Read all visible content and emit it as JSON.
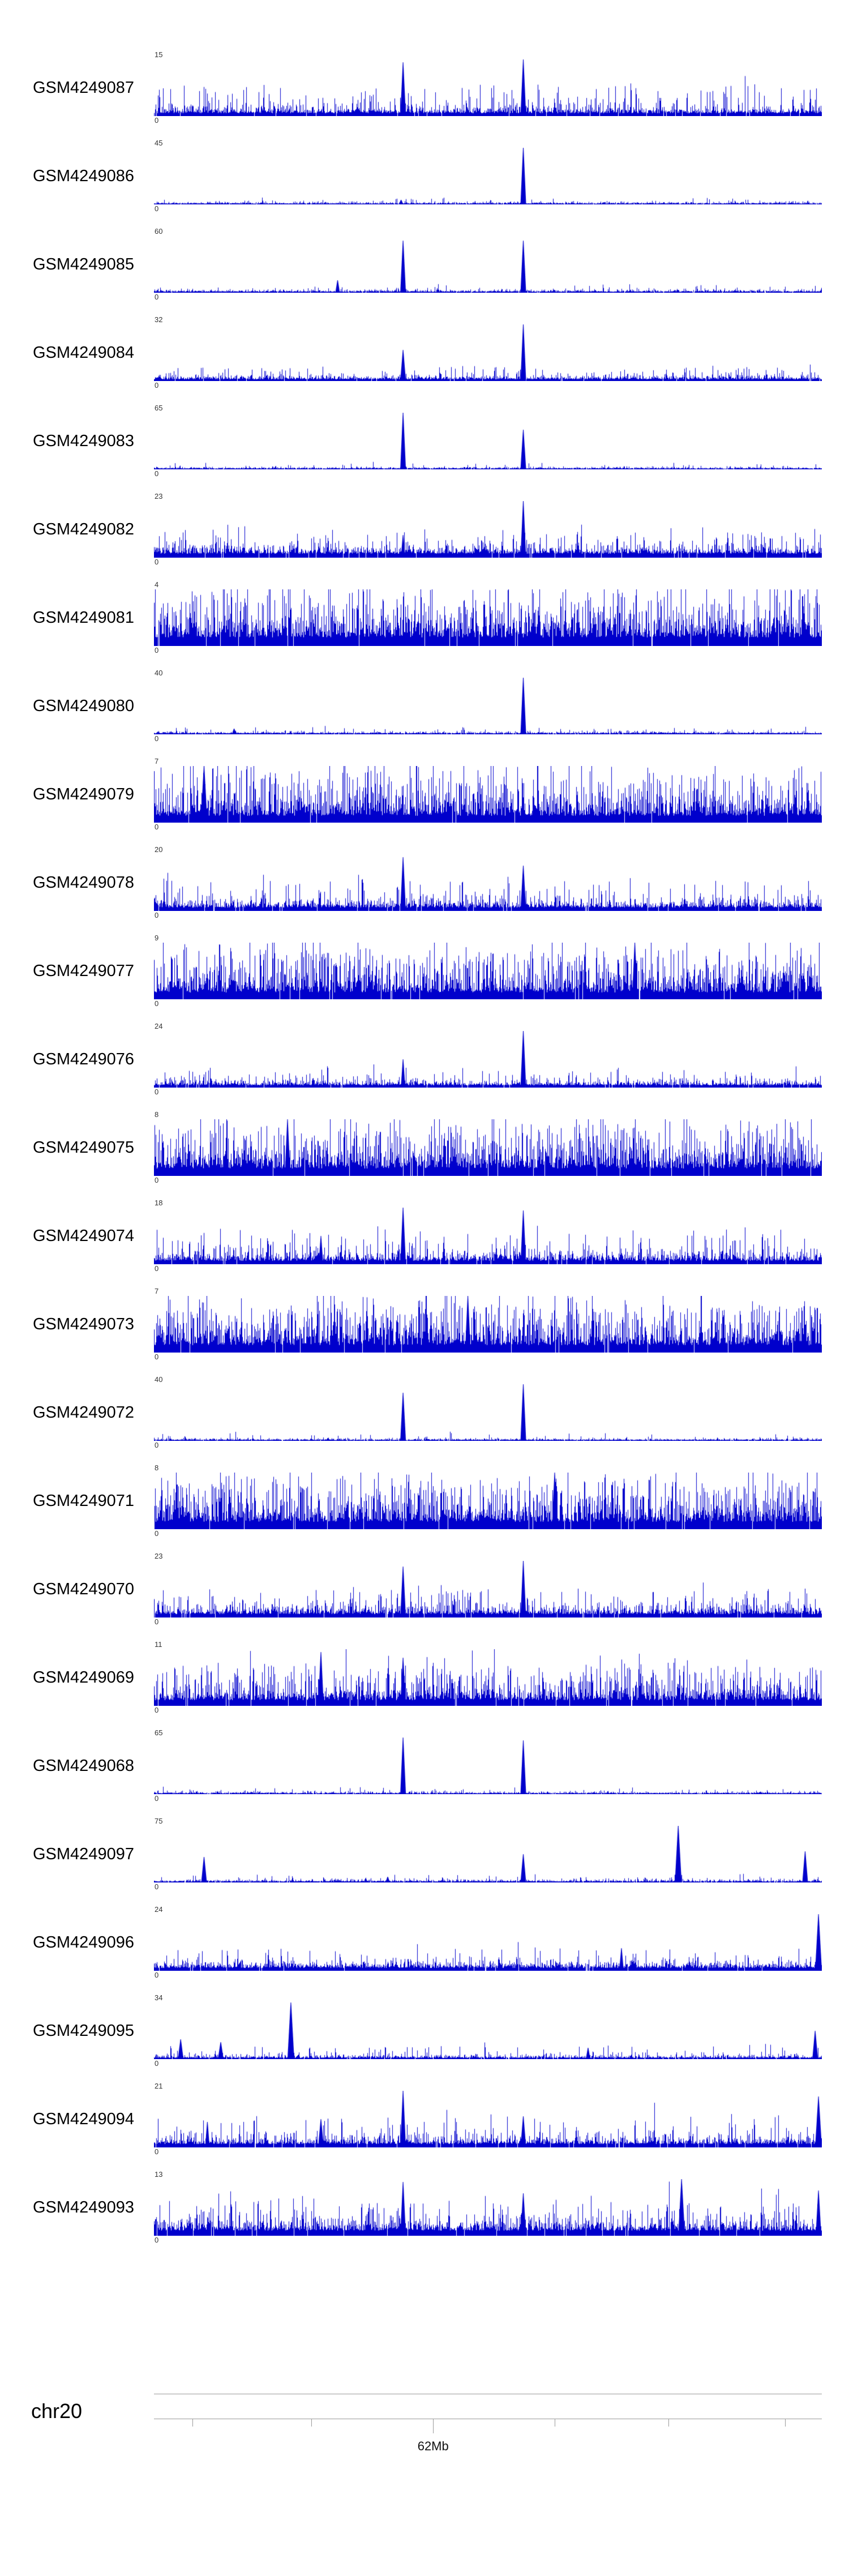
{
  "page": {
    "background": "#ffffff"
  },
  "chart_data": {
    "type": "area",
    "title": "",
    "description": "Genome browser coverage signal tracks along chr20, one blue density track per GSM sample",
    "signal_color": "#0000cc",
    "x_axis": {
      "chromosome": "chr20",
      "tick_label": "62Mb",
      "ticks": [
        {
          "x": 0.058,
          "long": false
        },
        {
          "x": 0.236,
          "long": false
        },
        {
          "x": 0.418,
          "long": true,
          "label": "62Mb"
        },
        {
          "x": 0.6,
          "long": false
        },
        {
          "x": 0.77,
          "long": false
        },
        {
          "x": 0.945,
          "long": false
        }
      ]
    },
    "tracks": [
      {
        "label": "GSM4249087",
        "ymax": "15",
        "ymin": "0",
        "signal": {
          "density": 0.97,
          "base": 0.05,
          "spread": 0.09,
          "tall_prob": 0.1,
          "tall_add": 0.45
        },
        "peaks": [
          [
            0.373,
            0.95,
            5
          ],
          [
            0.553,
            1.0,
            5
          ]
        ]
      },
      {
        "label": "GSM4249086",
        "ymax": "45",
        "ymin": "0",
        "signal": {
          "density": 0.97,
          "base": 0.012,
          "spread": 0.02,
          "tall_prob": 0.02,
          "tall_add": 0.1
        },
        "peaks": [
          [
            0.37,
            0.08,
            4
          ],
          [
            0.553,
            1.0,
            5
          ]
        ]
      },
      {
        "label": "GSM4249085",
        "ymax": "60",
        "ymin": "0",
        "signal": {
          "density": 0.97,
          "base": 0.015,
          "spread": 0.025,
          "tall_prob": 0.03,
          "tall_add": 0.12
        },
        "peaks": [
          [
            0.275,
            0.22,
            4
          ],
          [
            0.373,
            0.92,
            5
          ],
          [
            0.553,
            0.92,
            5
          ]
        ]
      },
      {
        "label": "GSM4249084",
        "ymax": "32",
        "ymin": "0",
        "signal": {
          "density": 0.97,
          "base": 0.03,
          "spread": 0.05,
          "tall_prob": 0.06,
          "tall_add": 0.2
        },
        "peaks": [
          [
            0.373,
            0.55,
            5
          ],
          [
            0.553,
            1.0,
            5
          ]
        ]
      },
      {
        "label": "GSM4249083",
        "ymax": "65",
        "ymin": "0",
        "signal": {
          "density": 0.97,
          "base": 0.012,
          "spread": 0.02,
          "tall_prob": 0.02,
          "tall_add": 0.1
        },
        "peaks": [
          [
            0.373,
            1.0,
            5
          ],
          [
            0.553,
            0.7,
            5
          ]
        ]
      },
      {
        "label": "GSM4249082",
        "ymax": "23",
        "ymin": "0",
        "signal": {
          "density": 0.97,
          "base": 0.07,
          "spread": 0.1,
          "tall_prob": 0.1,
          "tall_add": 0.35
        },
        "peaks": [
          [
            0.373,
            0.4,
            4
          ],
          [
            0.553,
            1.0,
            5
          ]
        ]
      },
      {
        "label": "GSM4249081",
        "ymax": "4",
        "ymin": "0",
        "signal": {
          "density": 0.98,
          "base": 0.15,
          "spread": 0.3,
          "tall_prob": 0.3,
          "tall_add": 0.6
        },
        "peaks": []
      },
      {
        "label": "GSM4249080",
        "ymax": "40",
        "ymin": "0",
        "signal": {
          "density": 0.97,
          "base": 0.015,
          "spread": 0.02,
          "tall_prob": 0.03,
          "tall_add": 0.12
        },
        "peaks": [
          [
            0.12,
            0.1,
            4
          ],
          [
            0.553,
            1.0,
            5
          ]
        ]
      },
      {
        "label": "GSM4249079",
        "ymax": "7",
        "ymin": "0",
        "signal": {
          "density": 0.98,
          "base": 0.12,
          "spread": 0.28,
          "tall_prob": 0.28,
          "tall_add": 0.6
        },
        "peaks": [
          [
            0.075,
            1.0,
            6
          ]
        ]
      },
      {
        "label": "GSM4249078",
        "ymax": "20",
        "ymin": "0",
        "signal": {
          "density": 0.97,
          "base": 0.06,
          "spread": 0.1,
          "tall_prob": 0.12,
          "tall_add": 0.45
        },
        "peaks": [
          [
            0.373,
            0.95,
            5
          ],
          [
            0.553,
            0.8,
            5
          ]
        ]
      },
      {
        "label": "GSM4249077",
        "ymax": "9",
        "ymin": "0",
        "signal": {
          "density": 0.98,
          "base": 0.12,
          "spread": 0.26,
          "tall_prob": 0.3,
          "tall_add": 0.6
        },
        "peaks": [
          [
            0.72,
            1.0,
            5
          ]
        ]
      },
      {
        "label": "GSM4249076",
        "ymax": "24",
        "ymin": "0",
        "signal": {
          "density": 0.97,
          "base": 0.04,
          "spread": 0.06,
          "tall_prob": 0.07,
          "tall_add": 0.25
        },
        "peaks": [
          [
            0.373,
            0.5,
            4
          ],
          [
            0.553,
            1.0,
            5
          ]
        ]
      },
      {
        "label": "GSM4249075",
        "ymax": "8",
        "ymin": "0",
        "signal": {
          "density": 0.98,
          "base": 0.13,
          "spread": 0.28,
          "tall_prob": 0.3,
          "tall_add": 0.6
        },
        "peaks": [
          [
            0.2,
            1.0,
            5
          ]
        ]
      },
      {
        "label": "GSM4249074",
        "ymax": "18",
        "ymin": "0",
        "signal": {
          "density": 0.97,
          "base": 0.06,
          "spread": 0.11,
          "tall_prob": 0.12,
          "tall_add": 0.45
        },
        "peaks": [
          [
            0.25,
            0.5,
            4
          ],
          [
            0.373,
            1.0,
            5
          ],
          [
            0.553,
            0.95,
            5
          ]
        ]
      },
      {
        "label": "GSM4249073",
        "ymax": "7",
        "ymin": "0",
        "signal": {
          "density": 0.98,
          "base": 0.13,
          "spread": 0.27,
          "tall_prob": 0.3,
          "tall_add": 0.6
        },
        "peaks": [
          [
            0.47,
            1.0,
            5
          ]
        ]
      },
      {
        "label": "GSM4249072",
        "ymax": "40",
        "ymin": "0",
        "signal": {
          "density": 0.97,
          "base": 0.013,
          "spread": 0.02,
          "tall_prob": 0.025,
          "tall_add": 0.12
        },
        "peaks": [
          [
            0.373,
            0.85,
            5
          ],
          [
            0.553,
            1.0,
            5
          ]
        ]
      },
      {
        "label": "GSM4249071",
        "ymax": "8",
        "ymin": "0",
        "signal": {
          "density": 0.98,
          "base": 0.13,
          "spread": 0.28,
          "tall_prob": 0.3,
          "tall_add": 0.6
        },
        "peaks": [
          [
            0.6,
            1.0,
            5
          ]
        ]
      },
      {
        "label": "GSM4249070",
        "ymax": "23",
        "ymin": "0",
        "signal": {
          "density": 0.97,
          "base": 0.06,
          "spread": 0.1,
          "tall_prob": 0.12,
          "tall_add": 0.4
        },
        "peaks": [
          [
            0.373,
            0.9,
            5
          ],
          [
            0.553,
            1.0,
            5
          ]
        ]
      },
      {
        "label": "GSM4249069",
        "ymax": "11",
        "ymin": "0",
        "signal": {
          "density": 0.98,
          "base": 0.1,
          "spread": 0.2,
          "tall_prob": 0.22,
          "tall_add": 0.55
        },
        "peaks": [
          [
            0.25,
            0.95,
            5
          ],
          [
            0.373,
            0.85,
            5
          ]
        ]
      },
      {
        "label": "GSM4249068",
        "ymax": "65",
        "ymin": "0",
        "signal": {
          "density": 0.97,
          "base": 0.012,
          "spread": 0.02,
          "tall_prob": 0.02,
          "tall_add": 0.1
        },
        "peaks": [
          [
            0.373,
            1.0,
            5
          ],
          [
            0.553,
            0.95,
            5
          ]
        ]
      },
      {
        "label": "GSM4249097",
        "ymax": "75",
        "ymin": "0",
        "signal": {
          "density": 0.97,
          "base": 0.015,
          "spread": 0.025,
          "tall_prob": 0.03,
          "tall_add": 0.12
        },
        "peaks": [
          [
            0.075,
            0.45,
            5
          ],
          [
            0.35,
            0.1,
            4
          ],
          [
            0.553,
            0.5,
            5
          ],
          [
            0.785,
            1.0,
            6
          ],
          [
            0.975,
            0.55,
            5
          ]
        ]
      },
      {
        "label": "GSM4249096",
        "ymax": "24",
        "ymin": "0",
        "signal": {
          "density": 0.97,
          "base": 0.05,
          "spread": 0.08,
          "tall_prob": 0.08,
          "tall_add": 0.3
        },
        "peaks": [
          [
            0.7,
            0.4,
            4
          ],
          [
            0.995,
            1.0,
            6
          ]
        ]
      },
      {
        "label": "GSM4249095",
        "ymax": "34",
        "ymin": "0",
        "signal": {
          "density": 0.97,
          "base": 0.02,
          "spread": 0.035,
          "tall_prob": 0.05,
          "tall_add": 0.2
        },
        "peaks": [
          [
            0.04,
            0.35,
            5
          ],
          [
            0.1,
            0.3,
            5
          ],
          [
            0.205,
            1.0,
            6
          ],
          [
            0.65,
            0.2,
            4
          ],
          [
            0.99,
            0.5,
            5
          ]
        ]
      },
      {
        "label": "GSM4249094",
        "ymax": "21",
        "ymin": "0",
        "signal": {
          "density": 0.97,
          "base": 0.06,
          "spread": 0.1,
          "tall_prob": 0.1,
          "tall_add": 0.4
        },
        "peaks": [
          [
            0.08,
            0.45,
            4
          ],
          [
            0.25,
            0.5,
            5
          ],
          [
            0.373,
            1.0,
            5
          ],
          [
            0.553,
            0.55,
            5
          ],
          [
            0.995,
            0.9,
            6
          ]
        ]
      },
      {
        "label": "GSM4249093",
        "ymax": "13",
        "ymin": "0",
        "signal": {
          "density": 0.97,
          "base": 0.09,
          "spread": 0.14,
          "tall_prob": 0.15,
          "tall_add": 0.45
        },
        "peaks": [
          [
            0.373,
            0.95,
            5
          ],
          [
            0.553,
            0.75,
            5
          ],
          [
            0.79,
            1.0,
            6
          ],
          [
            0.995,
            0.8,
            5
          ]
        ]
      }
    ]
  }
}
